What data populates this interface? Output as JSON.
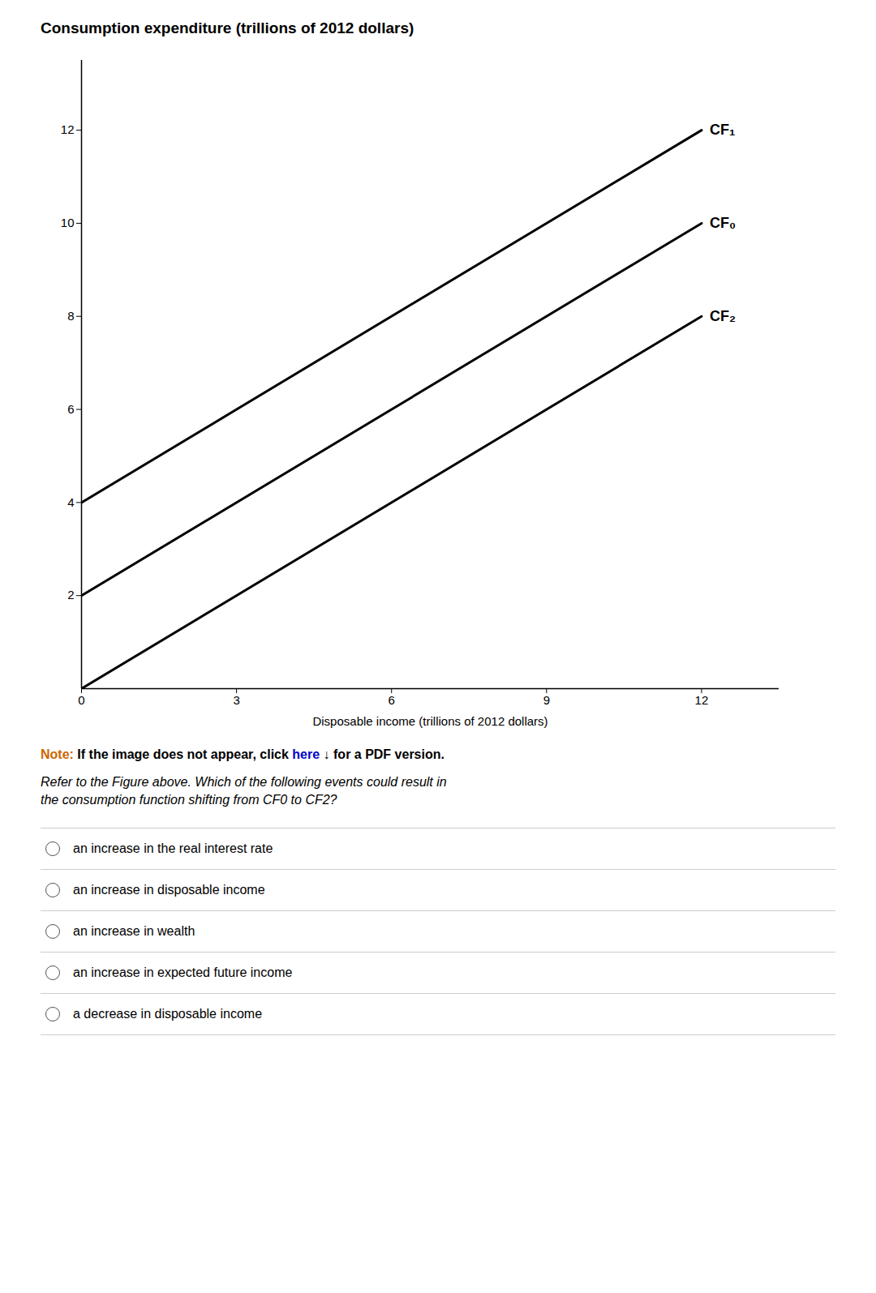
{
  "chart_data": {
    "type": "line",
    "title": "Consumption expenditure (trillions of 2012 dollars)",
    "xlabel": "Disposable income (trillions of 2012 dollars)",
    "x": [
      0,
      12
    ],
    "series": [
      {
        "name": "CF₁",
        "color": "#000000",
        "values": [
          4,
          12
        ]
      },
      {
        "name": "CF₀",
        "color": "#000000",
        "values": [
          2,
          10
        ]
      },
      {
        "name": "CF₂",
        "color": "#000000",
        "values": [
          0,
          8
        ]
      }
    ],
    "xlim": [
      0,
      13.5
    ],
    "ylim": [
      0,
      13.5
    ],
    "xticks": [
      0,
      3,
      6,
      9,
      12
    ],
    "yticks": [
      2,
      4,
      6,
      8,
      10,
      12
    ],
    "grid": false,
    "note": [
      {
        "text": "Note:",
        "color": "#cc6600"
      },
      {
        "text": "If the image does not appear, click",
        "color": "#000000"
      },
      {
        "text": "here",
        "color": "#0000cc"
      },
      {
        "text": "↓ for a PDF version.",
        "color": "#000000"
      }
    ],
    "question": "Refer to the Figure above. Which of the following events could result in\nthe consumption function shifting from CF0 to CF2?",
    "choices": [
      "an increase in the real interest rate",
      "an increase in disposable income",
      "an increase in wealth",
      "an increase in expected future income",
      "a decrease in disposable income"
    ]
  }
}
